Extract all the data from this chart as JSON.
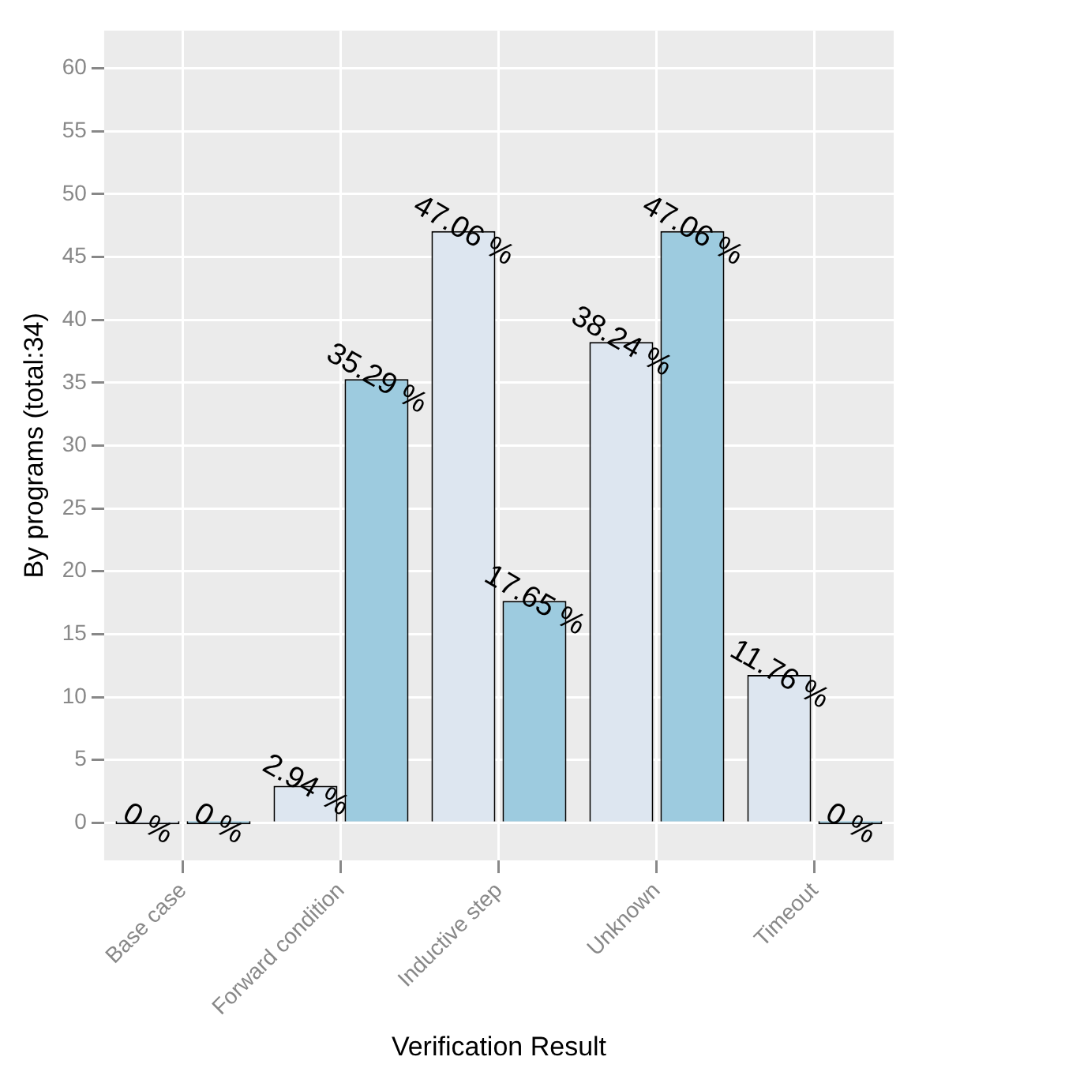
{
  "chart_data": {
    "type": "bar",
    "xlabel": "Verification Result",
    "ylabel": "By programs (total:34)",
    "categories": [
      "Base case",
      "Forward condition",
      "Inductive step",
      "Unknown",
      "Timeout"
    ],
    "series": [
      {
        "color": "#dde6f0",
        "values": [
          0,
          2.94,
          47.06,
          38.24,
          11.76
        ],
        "value_labels": [
          "0 %",
          "2.94 %",
          "47.06 %",
          "38.24 %",
          "11.76 %"
        ]
      },
      {
        "color": "#9dcbdf",
        "values": [
          0,
          35.29,
          17.65,
          47.06,
          0
        ],
        "value_labels": [
          "0 %",
          "35.29 %",
          "17.65 %",
          "47.06 %",
          "0 %"
        ]
      }
    ],
    "ylim": [
      -3,
      63
    ],
    "yticks": [
      0,
      5,
      10,
      15,
      20,
      25,
      30,
      35,
      40,
      45,
      50,
      55,
      60
    ],
    "grid": true,
    "legend": false
  }
}
